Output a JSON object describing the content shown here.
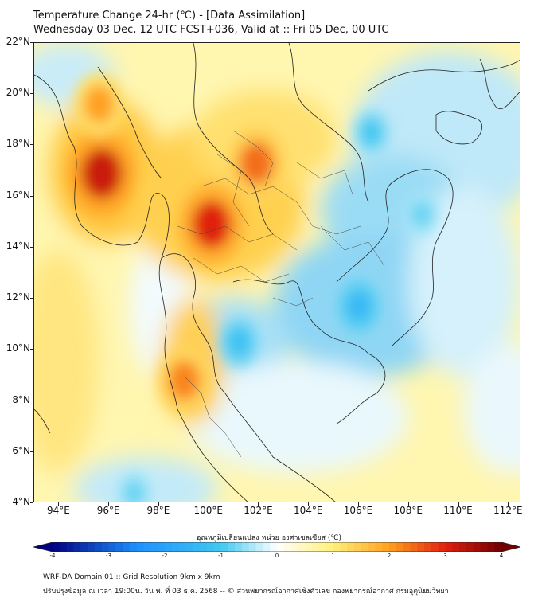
{
  "header": {
    "title": "Temperature Change 24-hr (℃) - [Data Assimilation]",
    "subtitle": "Wednesday 03 Dec, 12 UTC FCST+036, Valid at :: Fri 05 Dec, 00 UTC"
  },
  "map": {
    "lat_labels": [
      "22°N",
      "20°N",
      "18°N",
      "16°N",
      "14°N",
      "12°N",
      "10°N",
      "8°N",
      "6°N",
      "4°N"
    ],
    "lon_labels": [
      "94°E",
      "96°E",
      "98°E",
      "100°E",
      "102°E",
      "104°E",
      "106°E",
      "108°E",
      "110°E",
      "112°E"
    ],
    "lat_range": [
      4,
      22
    ],
    "lon_range": [
      93,
      112.5
    ],
    "warm_spots": [
      {
        "name": "myanmar-coast",
        "lon": 95.7,
        "lat": 16.9,
        "value": 3.2
      },
      {
        "name": "myanmar-north",
        "lon": 95.6,
        "lat": 19.6,
        "value": 2.0
      },
      {
        "name": "central-thailand",
        "lon": 100.1,
        "lat": 14.9,
        "value": 3.0
      },
      {
        "name": "northeast-laos",
        "lon": 101.9,
        "lat": 17.3,
        "value": 2.4
      },
      {
        "name": "southern-peninsula",
        "lon": 99.0,
        "lat": 8.8,
        "value": 2.2
      }
    ],
    "cool_spots": [
      {
        "name": "gulf-of-thailand",
        "lon": 101.2,
        "lat": 10.3,
        "value": -1.2
      },
      {
        "name": "cambodia",
        "lon": 106.0,
        "lat": 11.7,
        "value": -1.4
      },
      {
        "name": "tonkin-gulf",
        "lon": 106.5,
        "lat": 18.5,
        "value": -1.0
      },
      {
        "name": "south-china-sea",
        "lon": 108.5,
        "lat": 15.3,
        "value": -0.8
      },
      {
        "name": "andaman-south",
        "lon": 97.0,
        "lat": 4.4,
        "value": -0.8
      }
    ]
  },
  "colorbar": {
    "label": "อุณหภูมิเปลี่ยนแปลง หน่วย องศาเซลเซียส (℃)",
    "ticks": [
      "-4",
      "-3",
      "-2",
      "-1",
      "0",
      "1",
      "2",
      "3",
      "4"
    ],
    "min": -4,
    "max": 4,
    "colors": {
      "cold_end": "#000080",
      "blue": "#1e90ff",
      "cyan": "#40c8f0",
      "white": "#ffffff",
      "yellow": "#fff07a",
      "orange": "#ffa020",
      "red": "#e02010",
      "warm_end": "#700000"
    }
  },
  "footer": {
    "line1": "WRF-DA Domain 01 :: Grid Resolution 9km x 9km",
    "line2": "ปรับปรุงข้อมูล ณ เวลา 19:00น. วัน พ. ที่ 03 ธ.ค. 2568 -- © ส่วนพยากรณ์อากาศเชิงตัวเลข กองพยากรณ์อากาศ กรมอุตุนิยมวิทยา"
  }
}
